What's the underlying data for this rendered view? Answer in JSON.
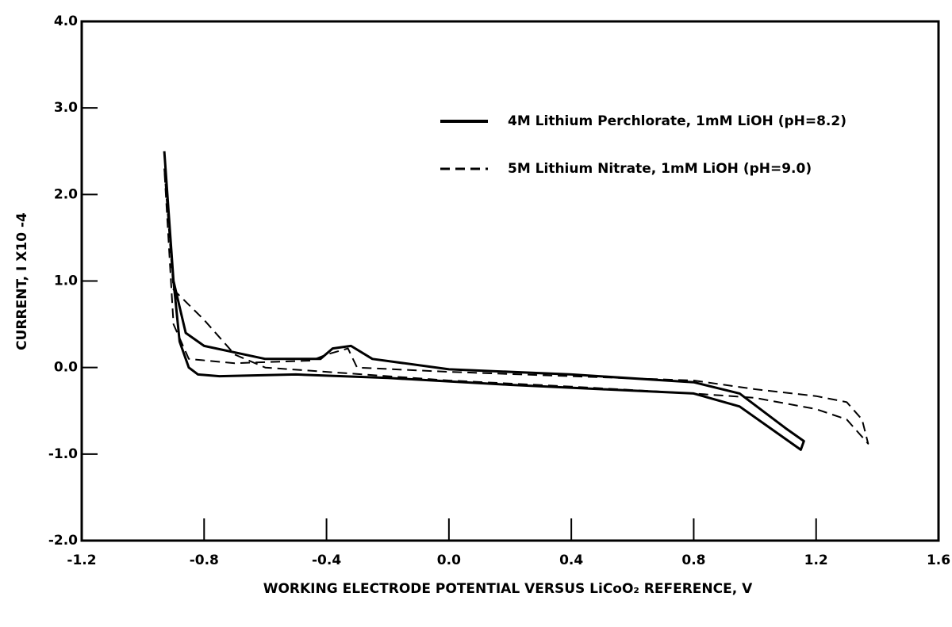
{
  "chart_data": {
    "type": "line",
    "xlabel": "WORKING ELECTRODE POTENTIAL VERSUS LiCoO₂ REFERENCE, V",
    "ylabel": "CURRENT, I X10 -4",
    "xlim": [
      -1.2,
      1.6
    ],
    "xticks": [
      -1.2,
      -0.8,
      -0.4,
      {
        "value": 0,
        "label": "0.0"
      },
      0.4,
      0.8,
      1.2,
      1.6
    ],
    "ylim": [
      -2,
      4
    ],
    "yticks": [
      {
        "value": -2,
        "label": "-2.0"
      },
      {
        "value": -1,
        "label": "-1.0"
      },
      {
        "value": 0,
        "label": "0.0"
      },
      {
        "value": 1,
        "label": "1.0"
      },
      {
        "value": 2,
        "label": "2.0"
      },
      {
        "value": 3,
        "label": "3.0"
      },
      {
        "value": 4,
        "label": "4.0"
      }
    ],
    "grid": false,
    "legend": "upper right",
    "series": [
      {
        "name": "4M Lithium Perchlorate, 1mM LiOH (pH=8.2)",
        "color": "#000000",
        "linestyle": "solid",
        "x": [
          -0.93,
          -0.9,
          -0.88,
          -0.85,
          -0.82,
          -0.75,
          -0.5,
          -0.2,
          0.2,
          0.5,
          0.8,
          0.95,
          1.05,
          1.15,
          1.16,
          1.1,
          0.95,
          0.8,
          0.4,
          0.0,
          -0.25,
          -0.32,
          -0.38,
          -0.42,
          -0.6,
          -0.8,
          -0.86,
          -0.9,
          -0.93
        ],
        "values": [
          2.5,
          1.0,
          0.3,
          0.0,
          -0.08,
          -0.1,
          -0.08,
          -0.12,
          -0.2,
          -0.25,
          -0.3,
          -0.45,
          -0.7,
          -0.95,
          -0.85,
          -0.7,
          -0.3,
          -0.17,
          -0.08,
          -0.02,
          0.1,
          0.25,
          0.22,
          0.1,
          0.1,
          0.25,
          0.4,
          1.0,
          2.5
        ]
      },
      {
        "name": "5M Lithium Nitrate, 1mM LiOH (pH=9.0)",
        "color": "#000000",
        "linestyle": "dashed",
        "x": [
          -0.93,
          -0.9,
          -0.8,
          -0.7,
          -0.6,
          -0.4,
          0.0,
          0.4,
          0.8,
          1.0,
          1.2,
          1.3,
          1.37,
          1.35,
          1.3,
          1.2,
          1.0,
          0.8,
          0.4,
          0.0,
          -0.3,
          -0.33,
          -0.4,
          -0.45,
          -0.7,
          -0.85,
          -0.9,
          -0.93
        ],
        "values": [
          2.3,
          0.9,
          0.55,
          0.15,
          0.0,
          -0.05,
          -0.15,
          -0.22,
          -0.3,
          -0.35,
          -0.48,
          -0.6,
          -0.88,
          -0.6,
          -0.4,
          -0.33,
          -0.25,
          -0.15,
          -0.1,
          -0.05,
          0.0,
          0.22,
          0.15,
          0.08,
          0.05,
          0.1,
          0.5,
          2.3
        ]
      }
    ]
  }
}
